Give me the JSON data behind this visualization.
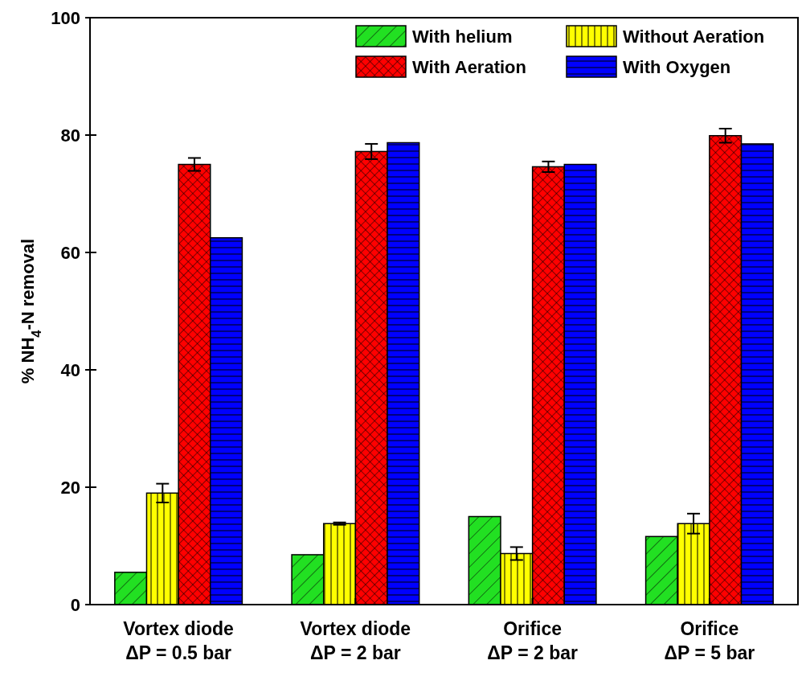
{
  "chart_data": {
    "type": "bar",
    "ylabel": "% NH$_{4}$-N removal",
    "categories": [
      "Vortex diode\nΔP = 0.5 bar",
      "Vortex diode\nΔP = 2 bar",
      "Orifice\nΔP = 2 bar",
      "Orifice\nΔP = 5 bar"
    ],
    "series": [
      {
        "name": "With helium",
        "color": "#22e022",
        "values": [
          5.5,
          8.5,
          15,
          11.6
        ]
      },
      {
        "name": "Without Aeration",
        "color": "#ffff00",
        "values": [
          19,
          13.8,
          8.7,
          13.8
        ],
        "errors": [
          1.6,
          0.2,
          1.1,
          1.7
        ]
      },
      {
        "name": "With Aeration",
        "color": "#ff0000",
        "values": [
          75,
          77.2,
          74.6,
          79.9
        ],
        "errors": [
          1.1,
          1.3,
          0.9,
          1.2
        ]
      },
      {
        "name": "With Oxygen",
        "color": "#0000ff",
        "values": [
          62.5,
          78.7,
          75,
          78.5
        ]
      }
    ],
    "ylim": [
      0,
      100
    ],
    "yticks": [
      0,
      20,
      40,
      60,
      80,
      100
    ],
    "grid": false,
    "legend": "top right"
  }
}
